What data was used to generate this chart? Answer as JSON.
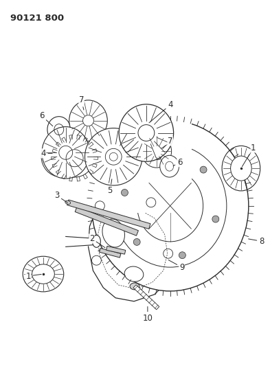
{
  "title": "90121 800",
  "bg": "#ffffff",
  "lc": "#2a2a2a",
  "figsize": [
    3.93,
    5.33
  ],
  "dpi": 100
}
